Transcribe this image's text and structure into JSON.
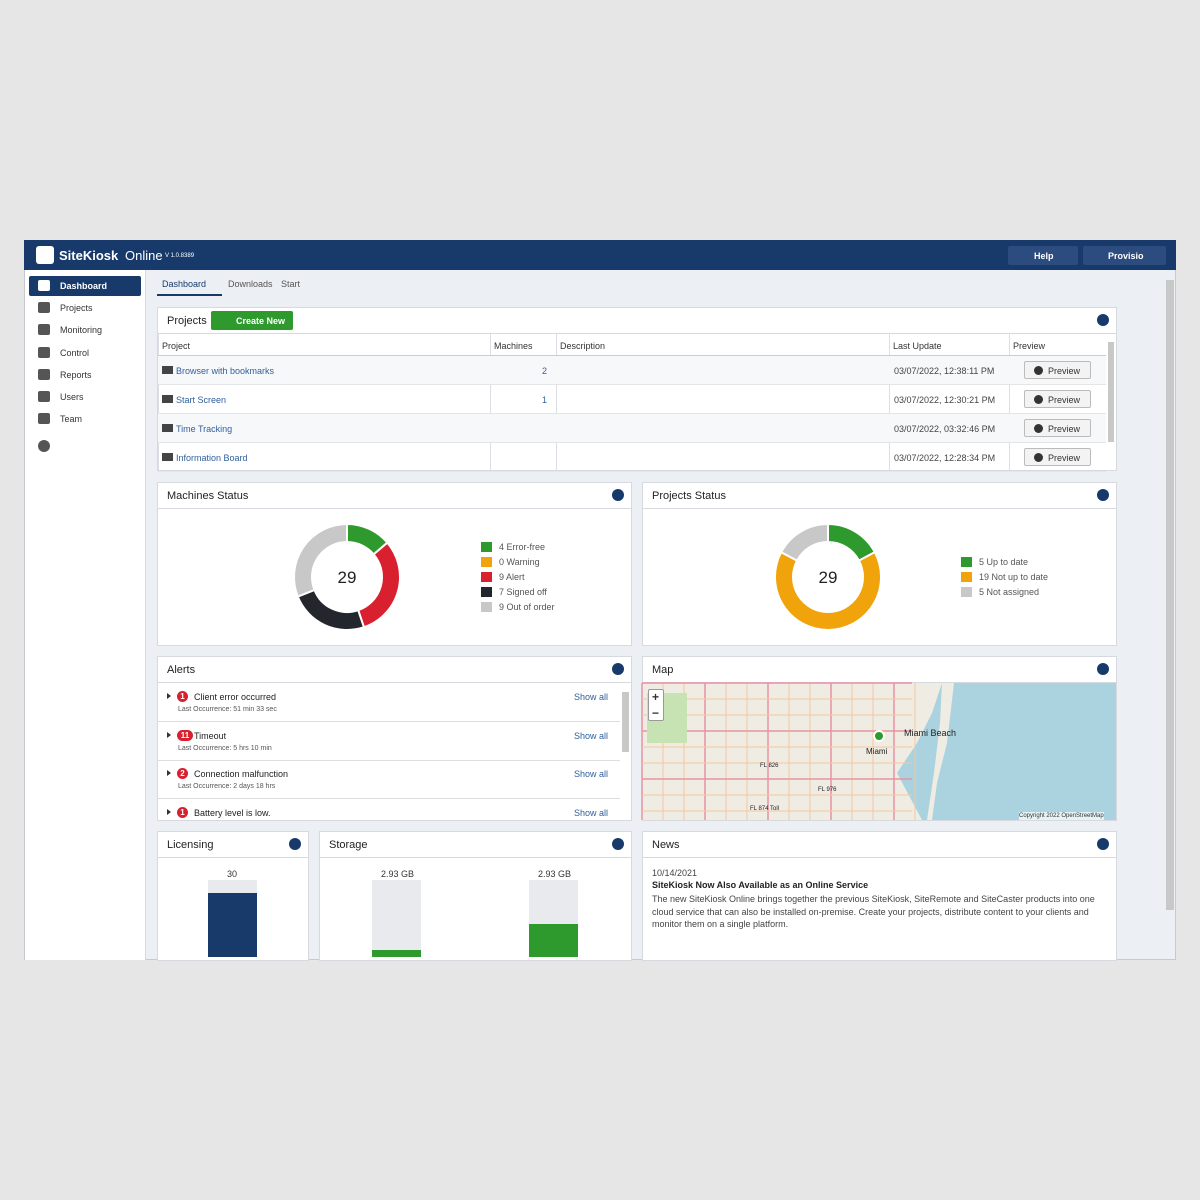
{
  "header": {
    "brand": "SiteKiosk",
    "product": "Online",
    "version": "V 1.0.8389",
    "help": "Help",
    "user": "Provisio"
  },
  "sidebar": {
    "items": [
      "Dashboard",
      "Projects",
      "Monitoring",
      "Control",
      "Reports",
      "Users",
      "Team"
    ]
  },
  "tabs": [
    "Dashboard",
    "Downloads",
    "Start"
  ],
  "projects": {
    "title": "Projects",
    "create": "Create New",
    "columns": [
      "Project",
      "Machines",
      "Description",
      "Last Update",
      "Preview"
    ],
    "rows": [
      {
        "project": "Browser with bookmarks",
        "machines": 2,
        "updated": "03/07/2022, 12:38:11 PM",
        "preview": "Preview"
      },
      {
        "project": "Start Screen",
        "machines": 1,
        "updated": "03/07/2022, 12:30:21 PM",
        "preview": "Preview"
      },
      {
        "project": "Time Tracking",
        "updated": "03/07/2022, 03:32:46 PM",
        "preview": "Preview"
      },
      {
        "project": "Information Board",
        "updated": "03/07/2022, 12:28:34 PM",
        "preview": "Preview"
      }
    ]
  },
  "machines_status": {
    "title": "Machines Status",
    "total": 29,
    "segments": [
      {
        "value": 4,
        "label": "4 Error-free",
        "color": "#2e9a2e"
      },
      {
        "value": 0,
        "label": "0 Warning",
        "color": "#f0a30a"
      },
      {
        "value": 9,
        "label": "9 Alert",
        "color": "#d9202f"
      },
      {
        "value": 7,
        "label": "7 Signed off",
        "color": "#23272d"
      },
      {
        "value": 9,
        "label": "9 Out of order",
        "color": "#c8c8c8"
      }
    ]
  },
  "projects_status": {
    "title": "Projects Status",
    "total": 29,
    "segments": [
      {
        "value": 5,
        "label": "5 Up to date",
        "color": "#2e9a2e"
      },
      {
        "value": 19,
        "label": "19 Not up to date",
        "color": "#f0a30a"
      },
      {
        "value": 5,
        "label": "5 Not assigned",
        "color": "#c8c8c8"
      }
    ]
  },
  "alerts": {
    "title": "Alerts",
    "items": [
      {
        "count": 1,
        "title": "Client error occurred",
        "meta": "Last Occurrence: 51 min 33 sec",
        "action": "Show all"
      },
      {
        "count": 11,
        "title": "Timeout",
        "meta": "Last Occurrence: 5 hrs 10 min",
        "action": "Show all"
      },
      {
        "count": 2,
        "title": "Connection malfunction",
        "meta": "Last Occurrence: 2 days 18 hrs",
        "action": "Show all"
      },
      {
        "count": 1,
        "title": "Battery level is low.",
        "action": "Show all"
      }
    ]
  },
  "map": {
    "title": "Map",
    "zoom_in": "+",
    "zoom_out": "−",
    "labels": [
      "Miami Beach",
      "Miami",
      "FL 826",
      "FL 976",
      "FL 874 Toll"
    ],
    "copyright": "Copyright 2022 OpenStreetMap"
  },
  "licensing": {
    "title": "Licensing",
    "value": 30,
    "ylim": [
      0,
      36
    ]
  },
  "storage": {
    "title": "Storage",
    "items": [
      {
        "label": "2.93 GB",
        "capacity": 2.93,
        "used": 0.27
      },
      {
        "label": "2.93 GB",
        "capacity": 2.93,
        "used": 1.26
      }
    ]
  },
  "news": {
    "title": "News",
    "date": "10/14/2021",
    "headline": "SiteKiosk Now Also Available as an Online Service",
    "body": "The new SiteKiosk Online brings together the previous SiteKiosk, SiteRemote and SiteCaster products into one cloud service that can also be installed on-premise. Create your projects, distribute content to your clients and monitor them on a single platform."
  }
}
